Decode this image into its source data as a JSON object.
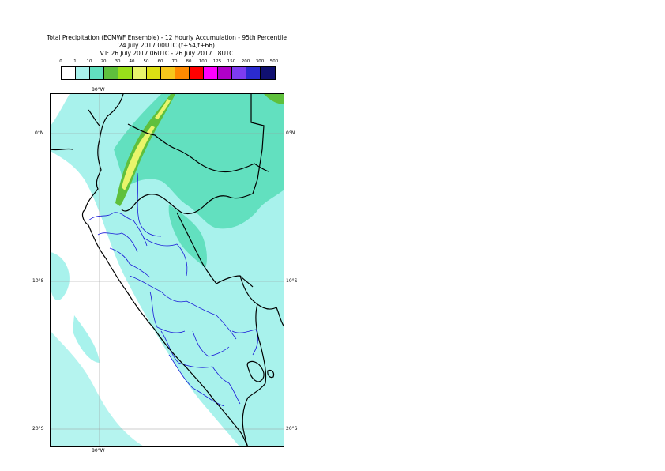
{
  "header": {
    "title_line1": "Total Precipitation (ECMWF Ensemble) - 12 Hourly Accumulation - 95th Percentile",
    "title_line2": "24 July 2017 00UTC (t+54,t+66)",
    "title_line3": "VT: 26 July 2017 06UTC - 26 July 2017 18UTC"
  },
  "legend": {
    "ticks": [
      "0",
      "1",
      "10",
      "20",
      "30",
      "40",
      "50",
      "60",
      "70",
      "80",
      "100",
      "125",
      "150",
      "200",
      "300",
      "500"
    ],
    "colors": [
      "#ffffff",
      "#a8f2ec",
      "#62e0bf",
      "#5fc03c",
      "#99e01a",
      "#e9f56b",
      "#dde013",
      "#f7c81c",
      "#ff8a00",
      "#ff0000",
      "#ff00ff",
      "#b100c8",
      "#7d3cf0",
      "#2b2bd0",
      "#101070"
    ]
  },
  "map": {
    "lon_label_top": "80°W",
    "lon_label_bottom": "80°W",
    "lat_labels": [
      "0°N",
      "10°S",
      "20°S"
    ],
    "colors": {
      "light_cyan": "#a8f2ec",
      "teal": "#62e0bf",
      "green": "#5fc03c",
      "yellow_green": "#e9f56b",
      "country_border": "#000000",
      "region_border": "#1a1ad8",
      "gridline": "#9a9a9a"
    }
  }
}
